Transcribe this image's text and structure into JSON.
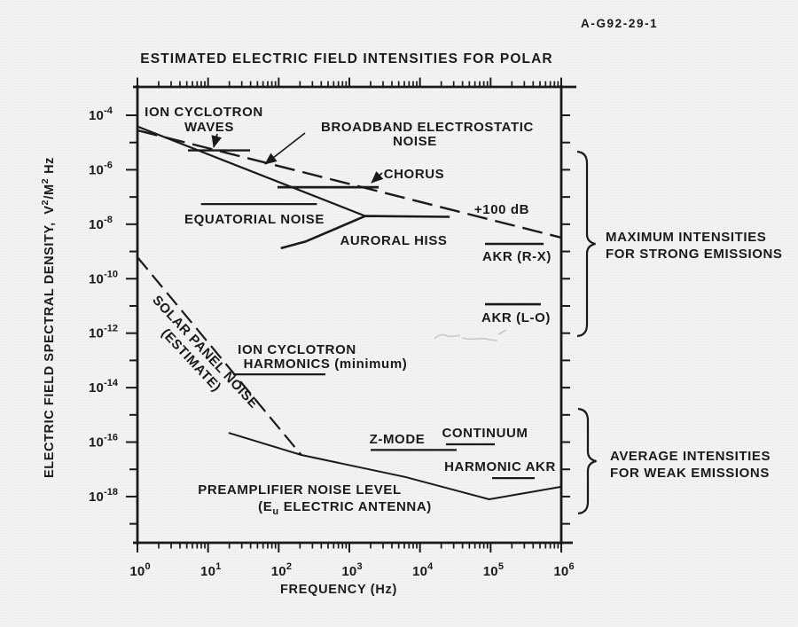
{
  "figure_id": "A-G92-29-1",
  "title": "ESTIMATED ELECTRIC FIELD INTENSITIES FOR POLAR",
  "colors": {
    "ink": "#1b1a18",
    "paper": "#f3f2f0"
  },
  "axes": {
    "x": {
      "label": "FREQUENCY (Hz)",
      "unit": "Hz",
      "scale": "log",
      "tick_exponents": [
        0,
        1,
        2,
        3,
        4,
        5,
        6
      ]
    },
    "y": {
      "label": "ELECTRIC FIELD SPECTRAL DENSITY, V2/M2 Hz",
      "scale": "log",
      "label_parts": [
        {
          "t": "ELECTRIC FIELD SPECTRAL DENSITY,"
        },
        {
          "t": "  V",
          "dx": 4
        },
        {
          "sup": "2"
        },
        {
          "t": "/M"
        },
        {
          "sup": "2"
        },
        {
          "t": " Hz"
        }
      ],
      "labeled_exponents": [
        -4,
        -6,
        -8,
        -10,
        -12,
        -14,
        -16,
        -18
      ],
      "tick_exponent_min": -19,
      "tick_exponent_max": -4
    }
  },
  "chart_data": {
    "type": "line",
    "title": "ESTIMATED ELECTRIC FIELD INTENSITIES FOR POLAR",
    "xlabel": "FREQUENCY (Hz)",
    "ylabel": "ELECTRIC FIELD SPECTRAL DENSITY, V2/M2 Hz",
    "xlim_log10": [
      0,
      6
    ],
    "ylim_log10": [
      -19.7,
      -3
    ],
    "grid": false,
    "series": [
      {
        "id": "upper-envelope",
        "label": "maximum intensity envelope",
        "style": "solid",
        "width": 2.2,
        "points_log10": [
          [
            0,
            -4.41
          ],
          [
            3.226,
            -7.7
          ]
        ]
      },
      {
        "id": "broadband-electrostatic-noise",
        "label": "BROADBAND ELECTROSTATIC NOISE (+100 dB)",
        "style": "dashed",
        "width": 2.4,
        "dash": "23 9",
        "points_log10": [
          [
            0,
            -4.55
          ],
          [
            6,
            -8.49
          ]
        ]
      },
      {
        "id": "auroral-hiss",
        "label": "AURORAL HISS",
        "style": "solid",
        "width": 2.6,
        "points_log10": [
          [
            2.03,
            -8.88
          ],
          [
            2.385,
            -8.63
          ],
          [
            3.226,
            -7.7
          ],
          [
            4.42,
            -7.73
          ]
        ]
      },
      {
        "id": "ion-cyclotron-waves",
        "label": "ION CYCLOTRON WAVES",
        "style": "bar",
        "width": 2.4,
        "points_log10": [
          [
            0.715,
            -5.29
          ],
          [
            1.594,
            -5.29
          ]
        ]
      },
      {
        "id": "chorus",
        "label": "CHORUS",
        "style": "bar",
        "width": 2.8,
        "points_log10": [
          [
            1.983,
            -6.64
          ],
          [
            3.414,
            -6.64
          ]
        ]
      },
      {
        "id": "equatorial-noise",
        "label": "EQUATORIAL NOISE",
        "style": "bar",
        "width": 2.2,
        "points_log10": [
          [
            0.9,
            -7.26
          ],
          [
            2.54,
            -7.26
          ]
        ]
      },
      {
        "id": "akr-rx",
        "label": "AKR (R-X)",
        "style": "bar",
        "width": 2.6,
        "points_log10": [
          [
            4.92,
            -8.72
          ],
          [
            5.75,
            -8.72
          ]
        ]
      },
      {
        "id": "akr-lo",
        "label": "AKR (L-O)",
        "style": "bar",
        "width": 2.6,
        "points_log10": [
          [
            4.92,
            -10.94
          ],
          [
            5.71,
            -10.94
          ]
        ]
      },
      {
        "id": "solar-panel-noise",
        "label": "SOLAR PANEL NOISE (ESTIMATE)",
        "style": "dashed",
        "width": 2.2,
        "dash": "18 8",
        "points_log10": [
          [
            0,
            -9.21
          ],
          [
            2.32,
            -16.47
          ]
        ]
      },
      {
        "id": "preamplifier-noise",
        "label": "PREAMPLIFIER NOISE LEVEL (Eu ELECTRIC ANTENNA)",
        "style": "solid",
        "width": 2.0,
        "points_log10": [
          [
            1.29,
            -15.66
          ],
          [
            2.32,
            -16.47
          ],
          [
            3.79,
            -17.28
          ],
          [
            4.98,
            -18.1
          ],
          [
            6.0,
            -17.64
          ]
        ]
      },
      {
        "id": "ion-cyclotron-harmonics",
        "label": "ION CYCLOTRON HARMONICS (minimum)",
        "style": "bar",
        "width": 2.2,
        "points_log10": [
          [
            1.356,
            -13.51
          ],
          [
            2.661,
            -13.51
          ]
        ]
      },
      {
        "id": "z-mode",
        "label": "Z-MODE",
        "style": "bar",
        "width": 2.2,
        "points_log10": [
          [
            3.301,
            -16.29
          ],
          [
            4.519,
            -16.29
          ]
        ]
      },
      {
        "id": "continuum",
        "label": "CONTINUUM",
        "style": "bar",
        "width": 2.2,
        "points_log10": [
          [
            4.368,
            -16.08
          ],
          [
            5.058,
            -16.08
          ]
        ]
      },
      {
        "id": "harmonic-akr",
        "label": "HARMONIC AKR",
        "style": "bar",
        "width": 2.2,
        "points_log10": [
          [
            5.021,
            -17.32
          ],
          [
            5.624,
            -17.32
          ]
        ]
      }
    ],
    "labels": {
      "ion_cyclotron_waves": {
        "l1": "ION CYCLOTRON",
        "l2": "WAVES"
      },
      "broadband": {
        "l1": "BROADBAND ELECTROSTATIC",
        "l2": "NOISE"
      },
      "chorus": {
        "l1": "CHORUS"
      },
      "equatorial_noise": {
        "l1": "EQUATORIAL NOISE"
      },
      "auroral_hiss": {
        "l1": "AURORAL HISS"
      },
      "plus_100db": {
        "l1": "+100 dB"
      },
      "akr_rx": {
        "l1": "AKR (R-X)"
      },
      "akr_lo": {
        "l1": "AKR (L-O)"
      },
      "solar_panel": {
        "l1": "SOLAR PANEL NOISE",
        "l2": "(ESTIMATE)"
      },
      "ion_cyclotron_harmonics": {
        "l1": "ION CYCLOTRON",
        "l2": "HARMONICS (minimum)"
      },
      "z_mode": {
        "l1": "Z-MODE"
      },
      "continuum": {
        "l1": "CONTINUUM"
      },
      "harmonic_akr": {
        "l1": "HARMONIC AKR"
      },
      "preamp": {
        "l1": "PREAMPLIFIER NOISE LEVEL",
        "l2_parts": [
          {
            "t": "(E"
          },
          {
            "sub": "u"
          },
          {
            "t": " ELECTRIC ANTENNA)"
          }
        ]
      },
      "max_brace": {
        "l1": "MAXIMUM INTENSITIES",
        "l2": "FOR STRONG EMISSIONS"
      },
      "avg_brace": {
        "l1": "AVERAGE INTENSITIES",
        "l2": "FOR WEAK EMISSIONS"
      }
    },
    "annotations": [
      {
        "id": "max-brace",
        "text": "MAXIMUM INTENSITIES FOR STRONG EMISSIONS",
        "side": "right"
      },
      {
        "id": "avg-brace",
        "text": "AVERAGE INTENSITIES FOR WEAK EMISSIONS",
        "side": "right"
      }
    ]
  }
}
